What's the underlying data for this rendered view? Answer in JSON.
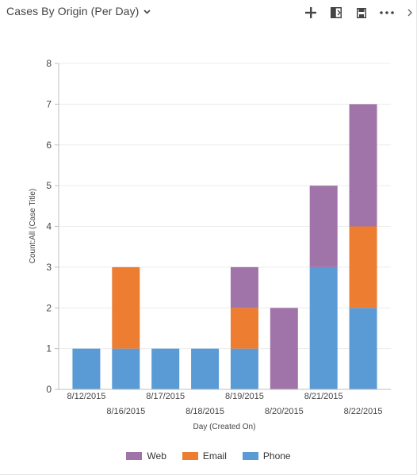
{
  "header": {
    "title": "Cases By Origin (Per Day)",
    "icons": [
      "chevron-down-icon",
      "plus-icon",
      "expand-icon",
      "save-icon",
      "more-icon",
      "chevron-right-icon"
    ]
  },
  "chart_data": {
    "type": "bar",
    "stacked": true,
    "categories": [
      "8/12/2015",
      "8/16/2015",
      "8/17/2015",
      "8/18/2015",
      "8/19/2015",
      "8/20/2015",
      "8/21/2015",
      "8/22/2015"
    ],
    "series": [
      {
        "name": "Phone",
        "color": "#5b9bd5",
        "values": [
          1,
          1,
          1,
          1,
          1,
          0,
          3,
          2
        ]
      },
      {
        "name": "Email",
        "color": "#ed7d31",
        "values": [
          0,
          2,
          0,
          0,
          1,
          0,
          0,
          2
        ]
      },
      {
        "name": "Web",
        "color": "#a074a8",
        "values": [
          0,
          0,
          0,
          0,
          1,
          2,
          2,
          3
        ]
      }
    ],
    "xlabel": "Day (Created On)",
    "ylabel": "Count:All (Case Title)",
    "ylim": [
      0,
      8
    ],
    "yticks": [
      "0",
      "1",
      "2",
      "3",
      "4",
      "5",
      "6",
      "7",
      "8"
    ],
    "grid": true,
    "legend_position": "bottom",
    "legend_order": [
      "Web",
      "Email",
      "Phone"
    ]
  }
}
